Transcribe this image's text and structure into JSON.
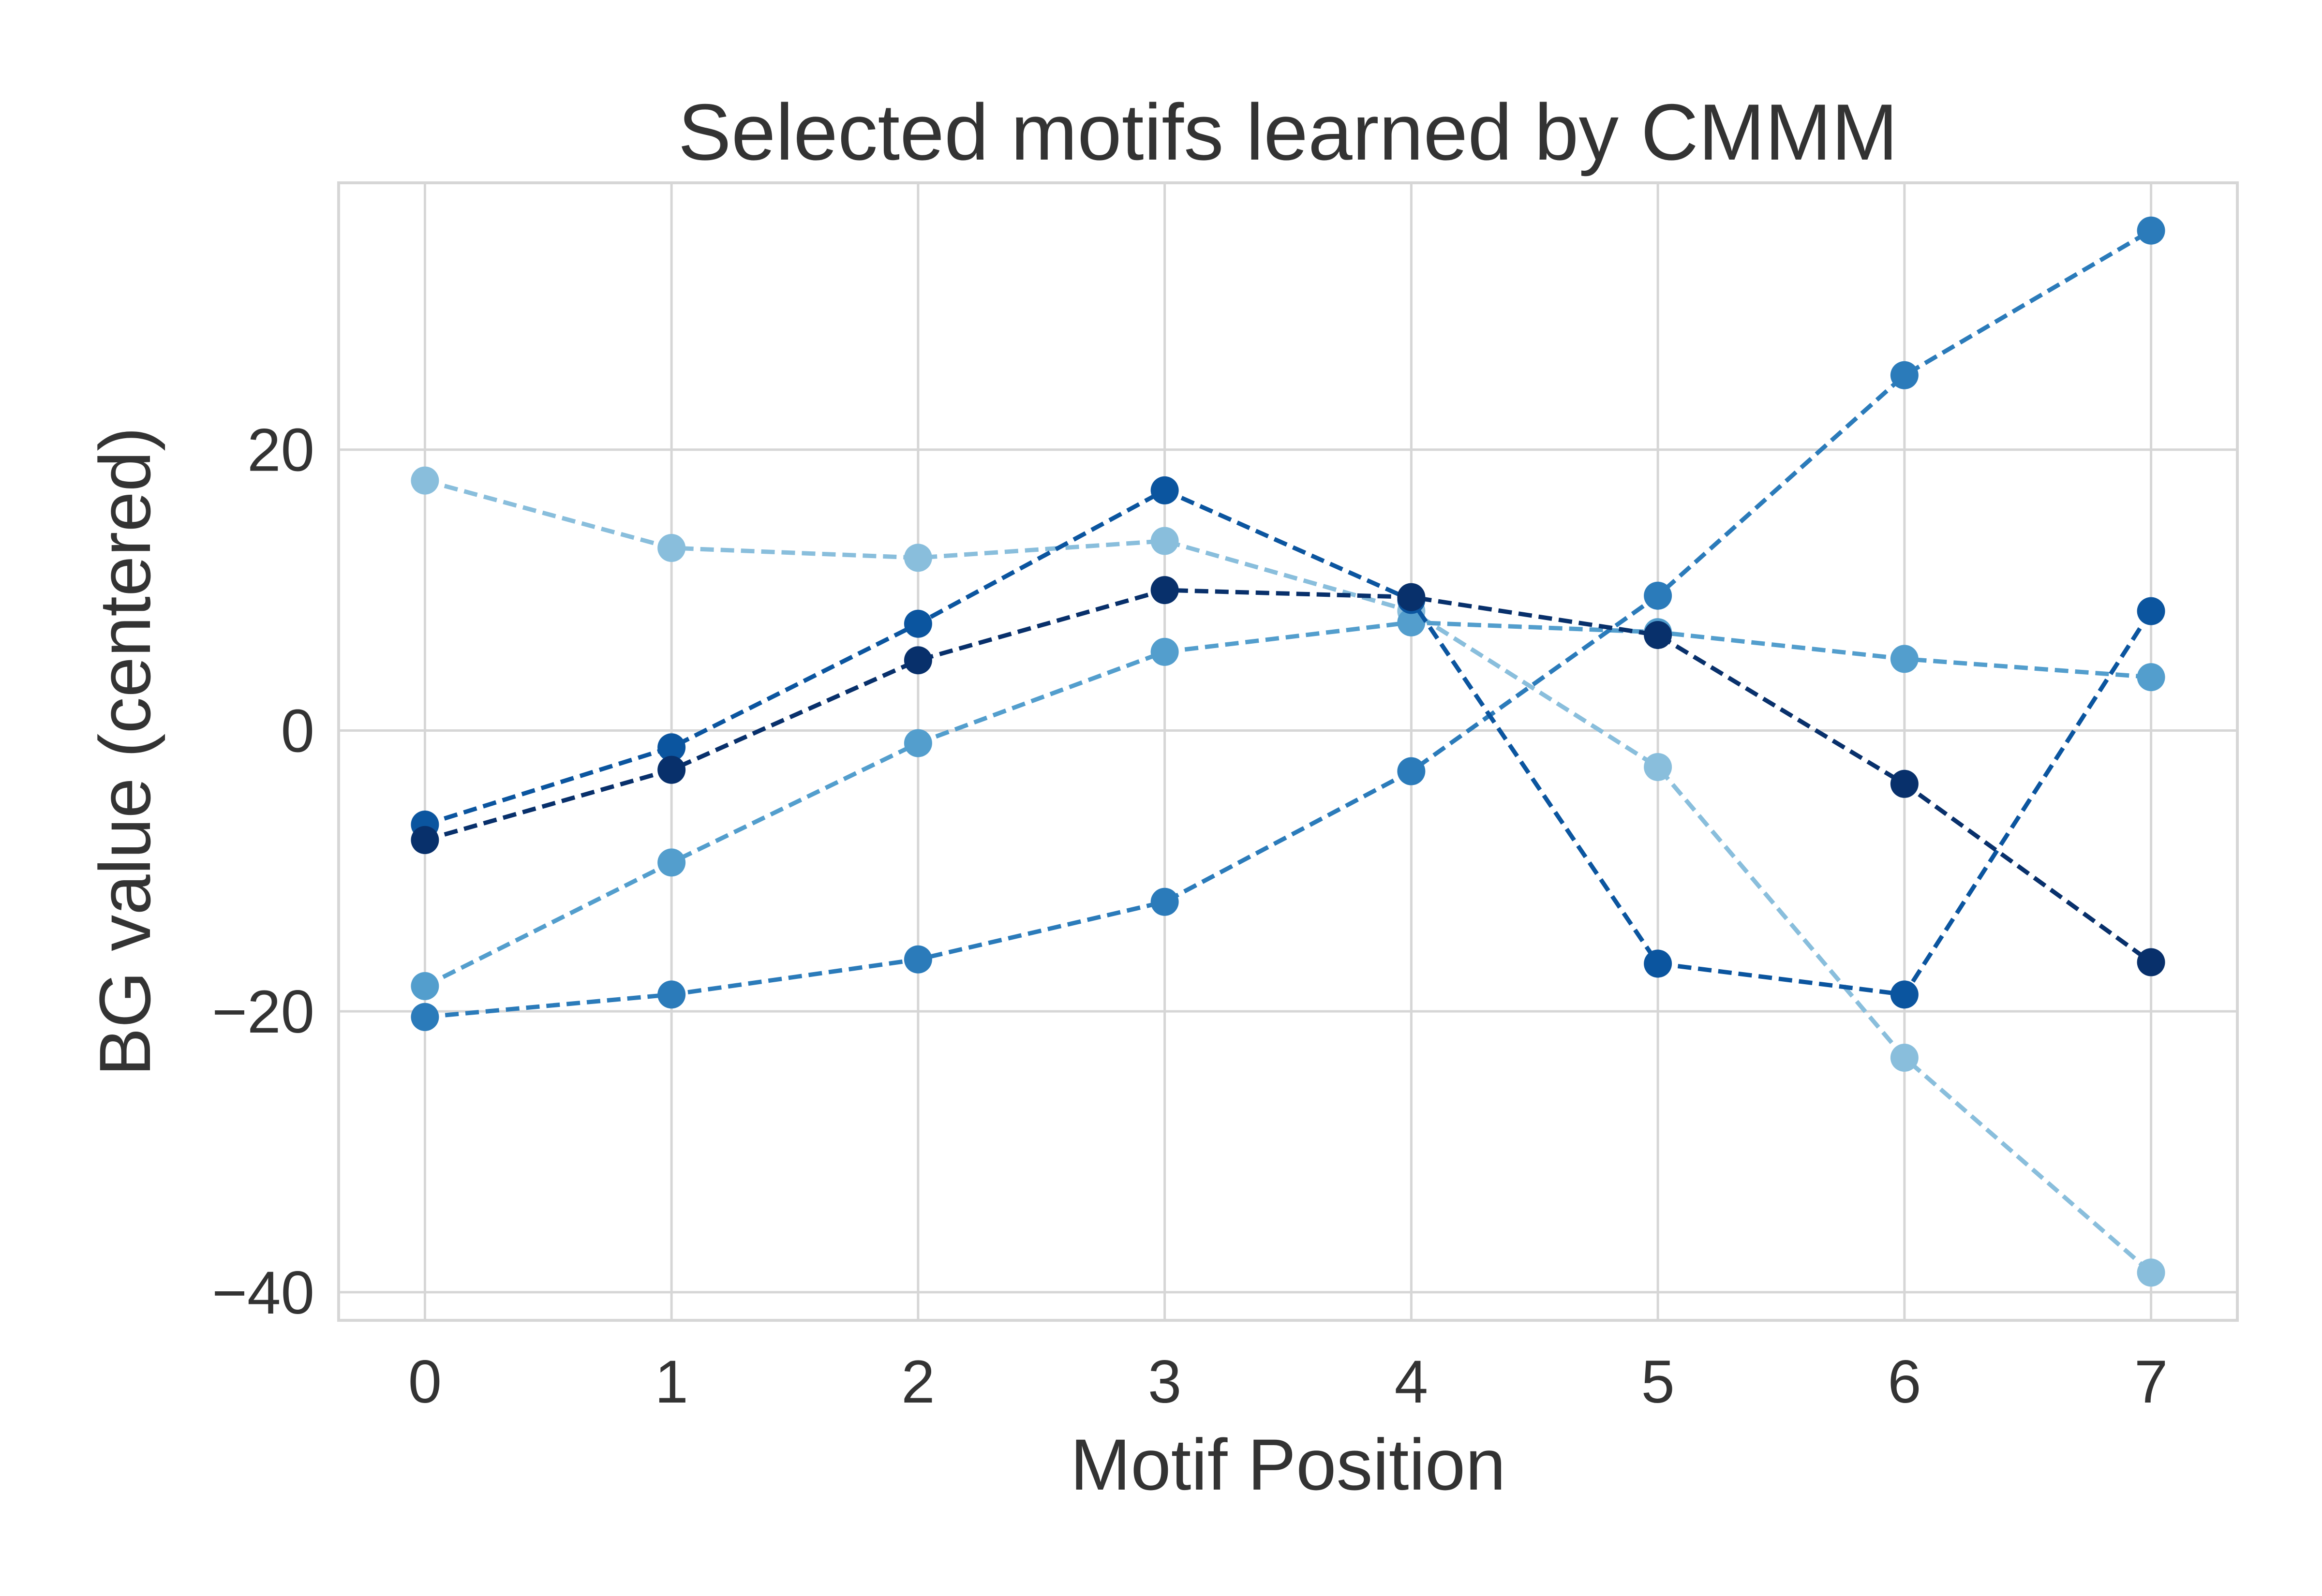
{
  "chart_data": {
    "type": "line",
    "title": "Selected motifs learned by CMMM",
    "xlabel": "Motif Position",
    "ylabel": "BG value (centered)",
    "x": [
      0,
      1,
      2,
      3,
      4,
      5,
      6,
      7
    ],
    "xlim": [
      -0.35,
      7.35
    ],
    "ylim": [
      -42,
      39
    ],
    "x_ticks": [
      "0",
      "1",
      "2",
      "3",
      "4",
      "5",
      "6",
      "7"
    ],
    "y_ticks": [
      {
        "value": 20,
        "label": "20"
      },
      {
        "value": 0,
        "label": "0"
      },
      {
        "value": -20,
        "label": "−20"
      },
      {
        "value": -40,
        "label": "−40"
      }
    ],
    "grid": true,
    "line_style": "dashed",
    "marker": "circle",
    "series": [
      {
        "color": "#89bedc",
        "values": [
          17.8,
          13.0,
          12.3,
          13.5,
          8.5,
          -2.6,
          -23.3,
          -38.6
        ]
      },
      {
        "color": "#539ecd",
        "values": [
          -18.2,
          -9.4,
          -0.9,
          5.6,
          7.7,
          7.0,
          5.1,
          3.8
        ]
      },
      {
        "color": "#2b7bba",
        "values": [
          -20.4,
          -18.8,
          -16.3,
          -12.2,
          -2.9,
          9.6,
          25.3,
          35.6
        ]
      },
      {
        "color": "#0b559f",
        "values": [
          -6.7,
          -1.2,
          7.6,
          17.1,
          9.3,
          -16.6,
          -18.8,
          8.5
        ]
      },
      {
        "color": "#08306b",
        "values": [
          -7.8,
          -2.8,
          5.0,
          10.0,
          9.5,
          6.8,
          -3.8,
          -16.5
        ]
      }
    ]
  }
}
